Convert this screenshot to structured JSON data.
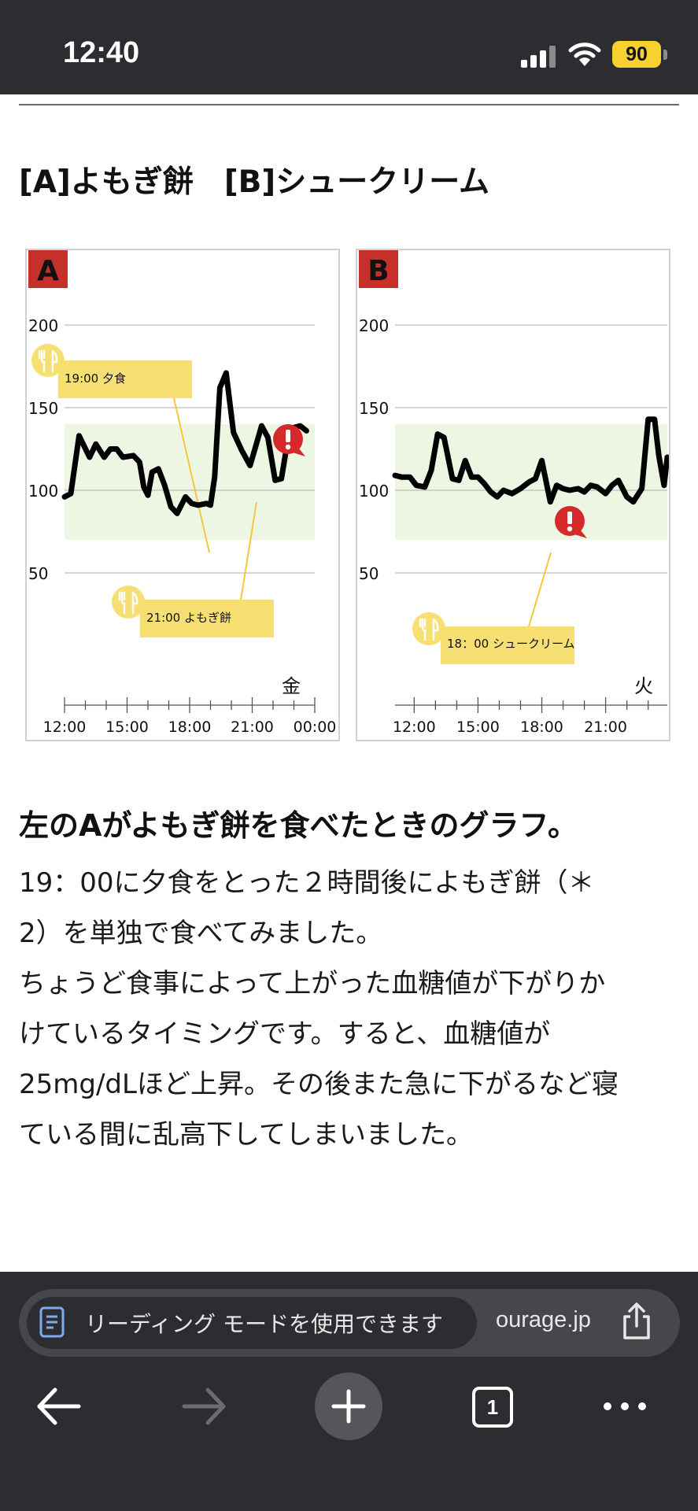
{
  "status_bar": {
    "time": "12:40",
    "battery": "90"
  },
  "article": {
    "section_heading": "[A]よもぎ餅　[B]シュークリーム",
    "heading": "左のAがよもぎ餅を食べたときのグラフ。",
    "body_lines": [
      "19：00に夕食をとった２時間後によもぎ餅（＊",
      "2）を単独で食べてみました。",
      "ちょうど食事によって上がった血糖値が下がりか",
      "けているタイミングです。すると、血糖値が",
      "25mg/dLほど上昇。その後また急に下がるなど寝",
      "ている間に乱高下してしまいました。"
    ]
  },
  "chart_data": [
    {
      "type": "line",
      "panel_label": "A",
      "day_label": "金",
      "y_ticks": [
        200,
        150,
        100,
        50
      ],
      "ylim": [
        40,
        215
      ],
      "x_ticks": [
        "12:00",
        "15:00",
        "18:00",
        "21:00",
        "00:00"
      ],
      "xlim": [
        12,
        24
      ],
      "target_range": [
        70,
        140
      ],
      "annotations": [
        "19:00 夕食",
        "21:00 よもぎ餅"
      ],
      "series": [
        {
          "values": [
            [
              12.0,
              96
            ],
            [
              12.3,
              98
            ],
            [
              12.7,
              133
            ],
            [
              13.2,
              120
            ],
            [
              13.5,
              128
            ],
            [
              13.9,
              120
            ],
            [
              14.2,
              125
            ],
            [
              14.5,
              125
            ],
            [
              14.8,
              120
            ],
            [
              15.3,
              121
            ],
            [
              15.6,
              117
            ],
            [
              15.8,
              102
            ],
            [
              16.0,
              97
            ],
            [
              16.2,
              111
            ],
            [
              16.5,
              113
            ],
            [
              16.8,
              103
            ],
            [
              17.1,
              90
            ],
            [
              17.4,
              86
            ],
            [
              17.8,
              96
            ],
            [
              18.1,
              92
            ],
            [
              18.4,
              91
            ],
            [
              18.8,
              92
            ],
            [
              19.0,
              91
            ],
            [
              19.2,
              108
            ],
            [
              19.45,
              162
            ],
            [
              19.75,
              171
            ],
            [
              20.1,
              135
            ],
            [
              20.5,
              124
            ],
            [
              20.9,
              115
            ],
            [
              21.2,
              128
            ],
            [
              21.45,
              139
            ],
            [
              21.75,
              132
            ],
            [
              22.1,
              106
            ],
            [
              22.4,
              107
            ],
            [
              22.7,
              130
            ],
            [
              23.0,
              138
            ],
            [
              23.3,
              139
            ],
            [
              23.6,
              136
            ]
          ]
        }
      ]
    },
    {
      "type": "line",
      "panel_label": "B",
      "day_label": "火",
      "y_ticks": [
        200,
        150,
        100,
        50
      ],
      "ylim": [
        40,
        215
      ],
      "x_ticks": [
        "12:00",
        "15:00",
        "18:00",
        "21:00"
      ],
      "xlim": [
        11.1,
        23.9
      ],
      "target_range": [
        70,
        140
      ],
      "annotations": [
        "18：00 シュークリーム"
      ],
      "series": [
        {
          "values": [
            [
              11.1,
              109
            ],
            [
              11.4,
              108
            ],
            [
              11.8,
              108
            ],
            [
              12.1,
              103
            ],
            [
              12.5,
              102
            ],
            [
              12.8,
              112
            ],
            [
              13.1,
              134
            ],
            [
              13.4,
              132
            ],
            [
              13.8,
              107
            ],
            [
              14.1,
              106
            ],
            [
              14.4,
              118
            ],
            [
              14.7,
              108
            ],
            [
              15.0,
              108
            ],
            [
              15.3,
              104
            ],
            [
              15.6,
              99
            ],
            [
              15.9,
              96
            ],
            [
              16.2,
              100
            ],
            [
              16.6,
              98
            ],
            [
              17.0,
              101
            ],
            [
              17.4,
              105
            ],
            [
              17.7,
              107
            ],
            [
              18.0,
              118
            ],
            [
              18.4,
              93
            ],
            [
              18.7,
              103
            ],
            [
              19.0,
              101
            ],
            [
              19.3,
              100
            ],
            [
              19.7,
              101
            ],
            [
              20.0,
              99
            ],
            [
              20.3,
              103
            ],
            [
              20.6,
              102
            ],
            [
              21.0,
              98
            ],
            [
              21.3,
              103
            ],
            [
              21.6,
              106
            ],
            [
              22.0,
              96
            ],
            [
              22.3,
              93
            ],
            [
              22.7,
              101
            ],
            [
              23.0,
              143
            ],
            [
              23.3,
              143
            ],
            [
              23.5,
              121
            ],
            [
              23.75,
              103
            ],
            [
              23.9,
              120
            ]
          ]
        }
      ]
    }
  ],
  "browser": {
    "reader_mode_label": "リーディング モードを使用できます",
    "domain": "ourage.jp",
    "tab_count": "1"
  },
  "colors": {
    "status_bar_bg": "#2c2d30",
    "target_band": "#edf5e3",
    "panel_label_bg": "#c6302b",
    "annotation_bg": "#f7df73",
    "alert_red": "#d62a2a",
    "line": "#000000"
  },
  "icons": [
    "signal-icon",
    "wifi-icon",
    "battery-icon",
    "fork-knife-icon",
    "alert-icon",
    "document-icon",
    "share-icon",
    "back-arrow-icon",
    "forward-arrow-icon",
    "plus-icon",
    "more-icon"
  ]
}
